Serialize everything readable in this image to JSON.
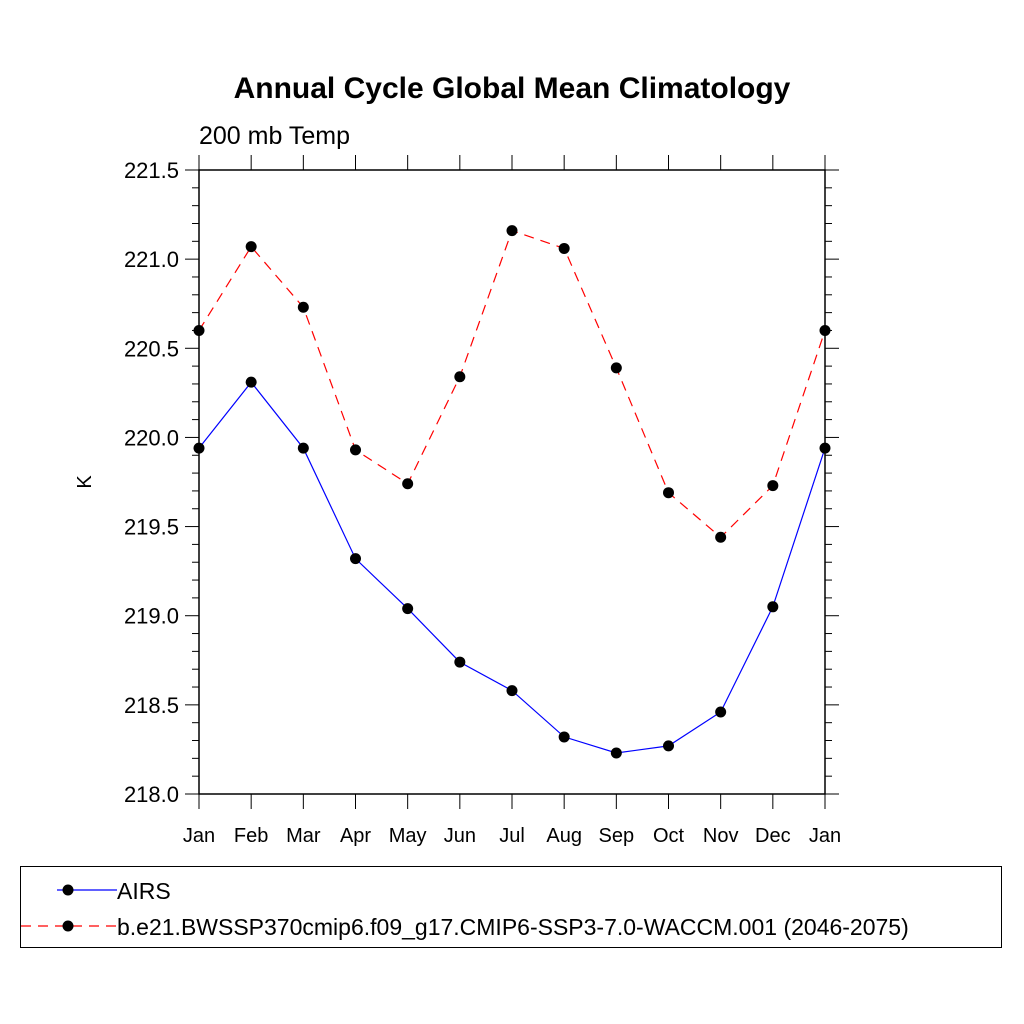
{
  "chart_data": {
    "type": "line",
    "title": "Annual Cycle Global Mean Climatology",
    "subtitle": "200 mb Temp",
    "xlabel": "",
    "ylabel": "K",
    "categories": [
      "Jan",
      "Feb",
      "Mar",
      "Apr",
      "May",
      "Jun",
      "Jul",
      "Aug",
      "Sep",
      "Oct",
      "Nov",
      "Dec",
      "Jan"
    ],
    "ylim": [
      218.0,
      221.5
    ],
    "yticks": [
      218.0,
      218.5,
      219.0,
      219.5,
      220.0,
      220.5,
      221.0,
      221.5
    ],
    "ytick_labels": [
      "218.0",
      "218.5",
      "219.0",
      "219.5",
      "220.0",
      "220.5",
      "221.0",
      "221.5"
    ],
    "grid": false,
    "series": [
      {
        "name": "AIRS",
        "color": "#0000ff",
        "dash": "solid",
        "marker": "circle",
        "values": [
          219.94,
          220.31,
          219.94,
          219.32,
          219.04,
          218.74,
          218.58,
          218.32,
          218.23,
          218.27,
          218.46,
          219.05,
          219.94
        ]
      },
      {
        "name": "b.e21.BWSSP370cmip6.f09_g17.CMIP6-SSP3-7.0-WACCM.001 (2046-2075)",
        "color": "#ff0000",
        "dash": "dashed",
        "marker": "circle",
        "values": [
          220.6,
          221.07,
          220.73,
          219.93,
          219.74,
          220.34,
          221.16,
          221.06,
          220.39,
          219.69,
          219.44,
          219.73,
          220.6
        ]
      }
    ],
    "legend": "bottom"
  }
}
